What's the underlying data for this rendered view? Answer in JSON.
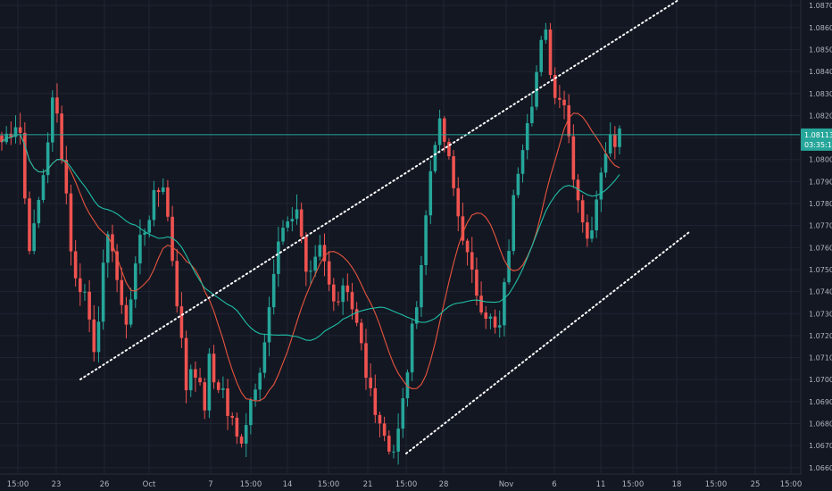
{
  "colors": {
    "background": "#131722",
    "grid": "#1f2433",
    "up": "#26a69a",
    "down": "#ef5350",
    "ma_fast": "#e8553e",
    "ma_slow": "#1fbfa6",
    "channel": "#ffffff",
    "price_line": "#26a69a",
    "axis_text": "#b2b5be"
  },
  "chart_data": {
    "type": "candlestick",
    "symbol_hint": "EURUSD",
    "grid": true,
    "price_axis": {
      "position": "right",
      "ticks": [
        "1.08700",
        "1.08600",
        "1.08500",
        "1.08400",
        "1.08300",
        "1.08200",
        "1.08100",
        "1.08000",
        "1.07900",
        "1.07800",
        "1.07700",
        "1.07600",
        "1.07500",
        "1.07400",
        "1.07300",
        "1.07200",
        "1.07100",
        "1.07000",
        "1.06900",
        "1.06800",
        "1.06700",
        "1.06600"
      ],
      "ylim": [
        1.06575,
        1.08725
      ]
    },
    "time_axis": {
      "labels": [
        "15:00",
        "23",
        "26",
        "Oct",
        "7",
        "15:00",
        "14",
        "15:00",
        "21",
        "15:00",
        "28",
        "Nov",
        "6",
        "11",
        "15:00",
        "18",
        "15:00",
        "25",
        "15:00"
      ]
    },
    "current_price": {
      "value": "1.08113",
      "countdown": "03:35:12"
    },
    "candles": {
      "count": 135,
      "close_path": [
        1.0808,
        1.0812,
        1.0815,
        1.082,
        1.0782,
        1.0757,
        1.0775,
        1.079,
        1.081,
        1.083,
        1.0812,
        1.079,
        1.076,
        1.074,
        1.0745,
        1.073,
        1.0715,
        1.0735,
        1.076,
        1.0765,
        1.0745,
        1.0725,
        1.073,
        1.075,
        1.0765,
        1.077,
        1.078,
        1.0785,
        1.079,
        1.0768,
        1.0745,
        1.072,
        1.0695,
        1.071,
        1.07,
        1.0685,
        1.071,
        1.0695,
        1.07,
        1.0685,
        1.068,
        1.067,
        1.0678,
        1.069,
        1.07,
        1.071,
        1.0725,
        1.0745,
        1.076,
        1.0775,
        1.077,
        1.078,
        1.076,
        1.0745,
        1.0755,
        1.0765,
        1.075,
        1.0745,
        1.073,
        1.074,
        1.0735,
        1.0725,
        1.072,
        1.07,
        1.0695,
        1.0685,
        1.0678,
        1.067,
        1.0668,
        1.068,
        1.07,
        1.072,
        1.074,
        1.076,
        1.079,
        1.081,
        1.0815,
        1.0805,
        1.079,
        1.0775,
        1.0765,
        1.075,
        1.0742,
        1.0735,
        1.073,
        1.0725,
        1.0718,
        1.074,
        1.0765,
        1.079,
        1.0805,
        1.082,
        1.083,
        1.0845,
        1.086,
        1.0842,
        1.0825,
        1.0835,
        1.0815,
        1.0795,
        1.078,
        1.077,
        1.076,
        1.0785,
        1.08,
        1.0812,
        1.0808,
        1.0815
      ]
    },
    "moving_averages": [
      {
        "role": "fast",
        "color": "#e8553e"
      },
      {
        "role": "slow",
        "color": "#1fbfa6"
      }
    ],
    "annotations": [
      {
        "type": "dotted-line",
        "name": "upper-channel"
      },
      {
        "type": "dotted-line",
        "name": "lower-channel"
      }
    ]
  }
}
